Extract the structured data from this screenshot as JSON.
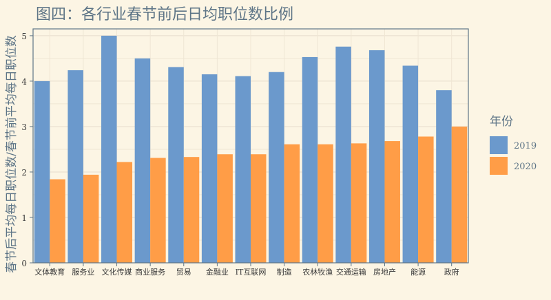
{
  "chart_data": {
    "type": "bar",
    "title": "图四：各行业春节前后日均职位数比例",
    "ylabel": "春节后平均每日职位数/春节前平均每日职位数",
    "xlabel": "",
    "categories": [
      "文体教育",
      "服务业",
      "文化传媒",
      "商业服务",
      "贸易",
      "金融业",
      "IT互联网",
      "制造",
      "农林牧渔",
      "交通运输",
      "房地产",
      "能源",
      "政府"
    ],
    "series": [
      {
        "name": "2019",
        "color": "#6b99cc",
        "values": [
          4.0,
          4.24,
          5.0,
          4.5,
          4.31,
          4.15,
          4.11,
          4.2,
          4.53,
          4.76,
          4.68,
          4.34,
          3.8
        ]
      },
      {
        "name": "2020",
        "color": "#ff9d47",
        "values": [
          1.84,
          1.94,
          2.22,
          2.31,
          2.33,
          2.39,
          2.39,
          2.61,
          2.61,
          2.63,
          2.68,
          2.78,
          3.0
        ]
      }
    ],
    "ylim": [
      0,
      5.15
    ],
    "yticks": [
      "0",
      "1",
      "2",
      "3",
      "4",
      "5"
    ],
    "grid": true,
    "legend": {
      "title": "年份",
      "position": "right"
    }
  }
}
